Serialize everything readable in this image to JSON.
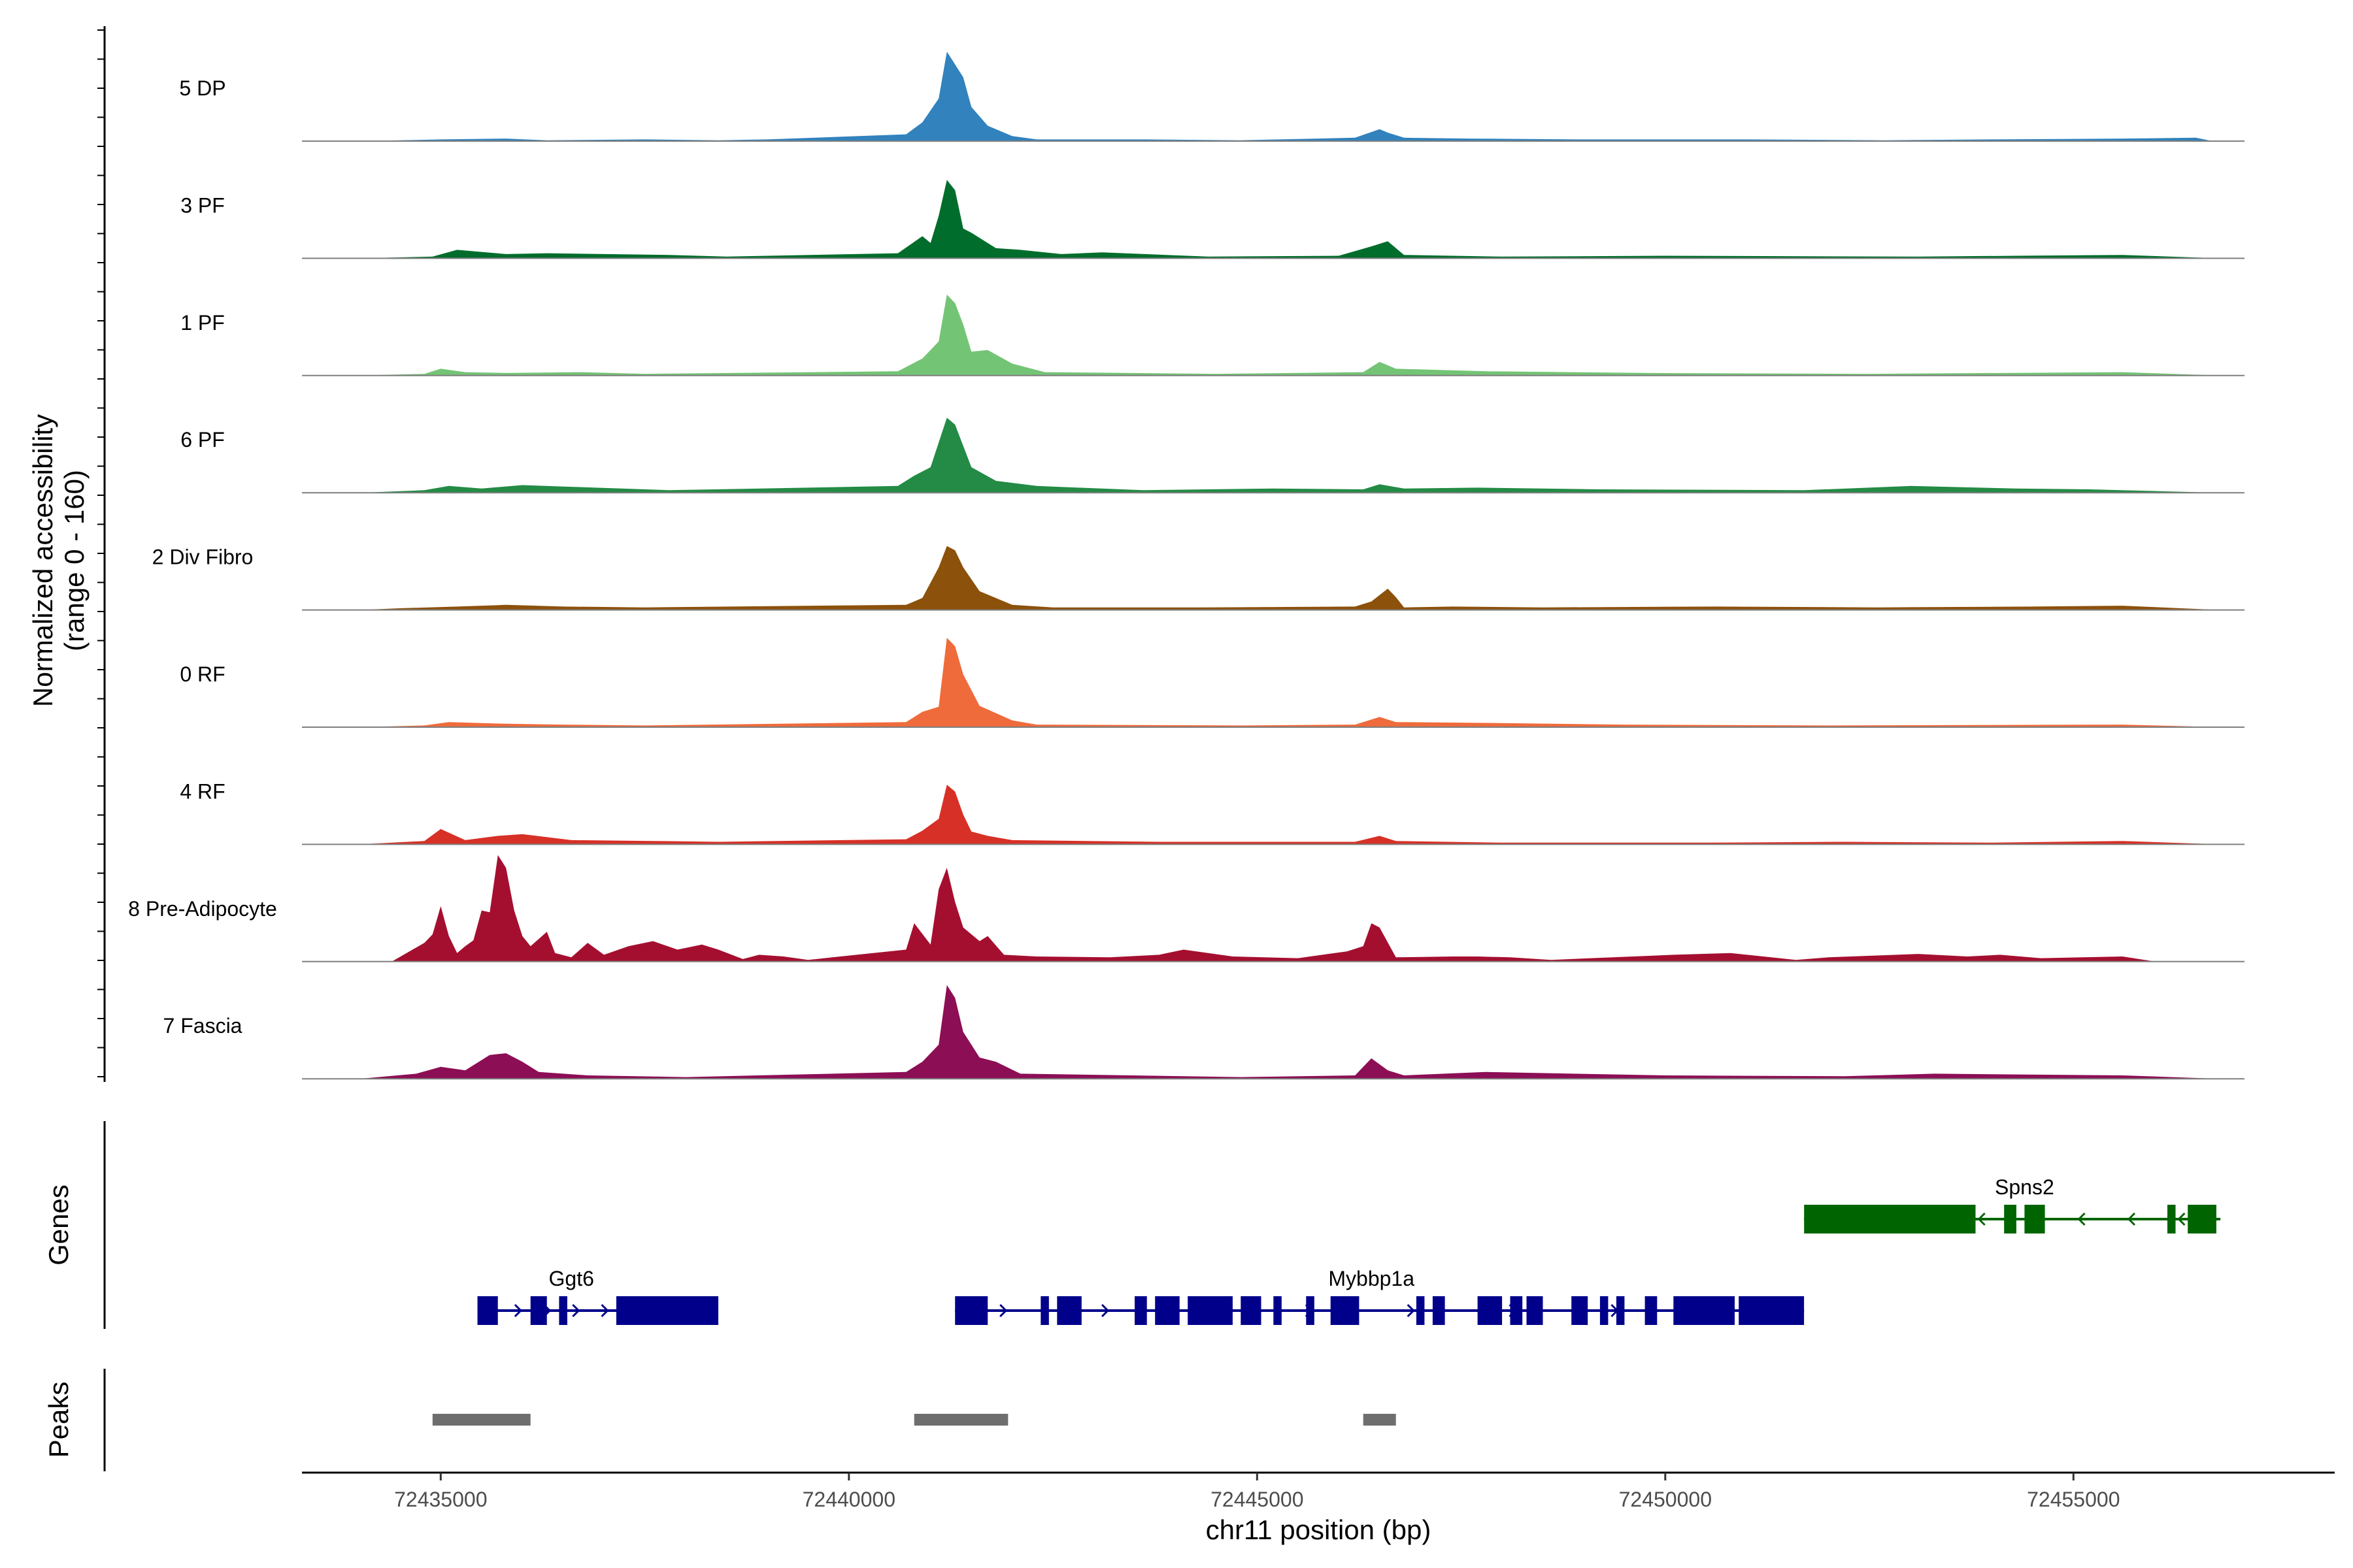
{
  "chart_data": {
    "type": "area",
    "title": "",
    "ylabel": "Normalized accessibility",
    "ylabel_range": "(range 0 - 160)",
    "ylim": [
      0,
      160
    ],
    "xlabel": "chr11 position (bp)",
    "xlim": [
      72433300,
      72458200
    ],
    "x_ticks": [
      72435000,
      72440000,
      72445000,
      72450000,
      72455000
    ],
    "x_tick_labels": [
      "72435000",
      "72440000",
      "72445000",
      "72450000",
      "72455000"
    ],
    "series": [
      {
        "name": "5 DP",
        "color": "#3182bd",
        "x": [
          72434000,
          72435000,
          72435800,
          72436300,
          72437500,
          72438400,
          72439000,
          72440700,
          72440900,
          72441100,
          72441200,
          72441300,
          72441400,
          72441500,
          72441700,
          72442000,
          72442300,
          72443600,
          72444800,
          72446200,
          72446500,
          72446600,
          72446800,
          72447600,
          72449000,
          72451000,
          72452700,
          72454000,
          72455600,
          72456500,
          72456700
        ],
        "values": [
          0,
          2,
          3,
          1,
          2,
          1,
          2,
          8,
          22,
          50,
          105,
          90,
          75,
          40,
          18,
          6,
          2,
          2,
          1,
          4,
          14,
          10,
          4,
          3,
          2,
          2,
          1,
          2,
          3,
          4,
          0
        ]
      },
      {
        "name": "3 PF",
        "color": "#006d2c",
        "x": [
          72434000,
          72434900,
          72435200,
          72435800,
          72436300,
          72437800,
          72438500,
          72440600,
          72440900,
          72441000,
          72441100,
          72441200,
          72441300,
          72441400,
          72441500,
          72441800,
          72442100,
          72442600,
          72443100,
          72444400,
          72446000,
          72446400,
          72446600,
          72446800,
          72448000,
          72450000,
          72453100,
          72454300,
          72455600,
          72456800
        ],
        "values": [
          0,
          2,
          10,
          5,
          6,
          4,
          2,
          6,
          26,
          18,
          50,
          92,
          80,
          35,
          30,
          12,
          10,
          5,
          7,
          2,
          3,
          14,
          20,
          4,
          2,
          3,
          2,
          3,
          4,
          0
        ]
      },
      {
        "name": "1 PF",
        "color": "#74c476",
        "x": [
          72434000,
          72434800,
          72435000,
          72435300,
          72435800,
          72436700,
          72437500,
          72440600,
          72440900,
          72441100,
          72441200,
          72441300,
          72441400,
          72441500,
          72441700,
          72442000,
          72442400,
          72444500,
          72446300,
          72446500,
          72446700,
          72447800,
          72449800,
          72452500,
          72455600,
          72456800
        ],
        "values": [
          0,
          2,
          8,
          4,
          3,
          4,
          2,
          5,
          20,
          40,
          95,
          85,
          60,
          28,
          30,
          14,
          4,
          2,
          4,
          16,
          8,
          5,
          3,
          2,
          4,
          0
        ]
      },
      {
        "name": "6 PF",
        "color": "#238b45",
        "x": [
          72434000,
          72434800,
          72435100,
          72435500,
          72436000,
          72436600,
          72437800,
          72440600,
          72440800,
          72441000,
          72441200,
          72441300,
          72441400,
          72441500,
          72441800,
          72442300,
          72443600,
          72445200,
          72446300,
          72446500,
          72446800,
          72447700,
          72449200,
          72451700,
          72453000,
          72454300,
          72455200,
          72456800
        ],
        "values": [
          0,
          3,
          8,
          5,
          9,
          7,
          3,
          8,
          20,
          30,
          88,
          80,
          55,
          30,
          14,
          8,
          3,
          5,
          4,
          10,
          5,
          6,
          4,
          3,
          8,
          5,
          4,
          0
        ]
      },
      {
        "name": "2 Div Fibro",
        "color": "#8c510a",
        "x": [
          72434000,
          72434500,
          72435200,
          72435800,
          72436500,
          72437500,
          72440700,
          72440900,
          72441100,
          72441200,
          72441300,
          72441400,
          72441600,
          72442000,
          72442500,
          72444300,
          72446200,
          72446400,
          72446600,
          72446700,
          72446800,
          72447400,
          72448500,
          72450600,
          72452600,
          72454500,
          72455600,
          72456800
        ],
        "values": [
          0,
          2,
          4,
          6,
          4,
          3,
          6,
          14,
          50,
          75,
          70,
          50,
          22,
          6,
          3,
          3,
          4,
          10,
          25,
          15,
          3,
          4,
          3,
          4,
          3,
          4,
          5,
          0
        ]
      },
      {
        "name": "0 RF",
        "color": "#ef6b3c",
        "x": [
          72434000,
          72434800,
          72435100,
          72435800,
          72436500,
          72437500,
          72440700,
          72440900,
          72441100,
          72441200,
          72441300,
          72441400,
          72441600,
          72442000,
          72442300,
          72444800,
          72446200,
          72446500,
          72446700,
          72447800,
          72449500,
          72452000,
          72455600,
          72456800
        ],
        "values": [
          0,
          2,
          6,
          4,
          3,
          2,
          6,
          18,
          24,
          105,
          95,
          62,
          25,
          8,
          3,
          2,
          3,
          12,
          6,
          5,
          3,
          2,
          3,
          0
        ]
      },
      {
        "name": "4 RF",
        "color": "#d73027",
        "x": [
          72434000,
          72434800,
          72435000,
          72435300,
          72435700,
          72436000,
          72436600,
          72437600,
          72438400,
          72440700,
          72440900,
          72441100,
          72441200,
          72441300,
          72441400,
          72441500,
          72441700,
          72442000,
          72443800,
          72446200,
          72446500,
          72446700,
          72448000,
          72450500,
          72452200,
          72454000,
          72455600,
          72456800
        ],
        "values": [
          0,
          4,
          18,
          5,
          10,
          12,
          5,
          4,
          3,
          6,
          16,
          30,
          70,
          62,
          35,
          15,
          10,
          5,
          3,
          3,
          10,
          4,
          2,
          2,
          3,
          2,
          4,
          0
        ]
      },
      {
        "name": "8 Pre-Adipocyte",
        "color": "#a50f2f",
        "x": [
          72434400,
          72434800,
          72434900,
          72435000,
          72435100,
          72435200,
          72435300,
          72435400,
          72435500,
          72435600,
          72435700,
          72435800,
          72435900,
          72436000,
          72436100,
          72436300,
          72436400,
          72436600,
          72436800,
          72437000,
          72437300,
          72437600,
          72437900,
          72438200,
          72438400,
          72438700,
          72438900,
          72439200,
          72439500,
          72440700,
          72440800,
          72441000,
          72441100,
          72441200,
          72441300,
          72441400,
          72441600,
          72441700,
          72441900,
          72442300,
          72443200,
          72443800,
          72444100,
          72444700,
          72445500,
          72446100,
          72446300,
          72446400,
          72446500,
          72446700,
          72447400,
          72447700,
          72448100,
          72448600,
          72450100,
          72450800,
          72451600,
          72452000,
          72453100,
          72453700,
          72454100,
          72454600,
          72455600,
          72456000
        ],
        "values": [
          0,
          22,
          32,
          65,
          30,
          10,
          18,
          25,
          60,
          58,
          125,
          110,
          60,
          30,
          18,
          35,
          10,
          5,
          22,
          8,
          18,
          24,
          14,
          20,
          14,
          3,
          8,
          6,
          2,
          14,
          45,
          20,
          85,
          110,
          70,
          40,
          24,
          30,
          8,
          6,
          5,
          8,
          14,
          6,
          4,
          12,
          18,
          45,
          40,
          5,
          6,
          6,
          5,
          2,
          8,
          10,
          2,
          5,
          9,
          6,
          8,
          4,
          6,
          0
        ]
      },
      {
        "name": "7 Fascia",
        "color": "#8c0e55",
        "x": [
          72434000,
          72434700,
          72435000,
          72435300,
          72435600,
          72435800,
          72436000,
          72436200,
          72436800,
          72438000,
          72440700,
          72440900,
          72441100,
          72441200,
          72441300,
          72441400,
          72441600,
          72441800,
          72442100,
          72444800,
          72446200,
          72446400,
          72446600,
          72446800,
          72447800,
          72450000,
          72452200,
          72453300,
          72455600,
          72456800
        ],
        "values": [
          0,
          6,
          14,
          10,
          28,
          30,
          20,
          8,
          4,
          2,
          8,
          20,
          40,
          110,
          95,
          55,
          25,
          20,
          6,
          2,
          4,
          24,
          10,
          4,
          8,
          4,
          3,
          6,
          4,
          0
        ]
      }
    ],
    "genes": [
      {
        "name": "Ggt6",
        "strand": "+",
        "color": "#00008b",
        "start": 72435450,
        "end": 72438400,
        "exons": [
          [
            72435450,
            72435700
          ],
          [
            72436100,
            72436300
          ],
          [
            72436450,
            72436550
          ],
          [
            72437150,
            72438400
          ]
        ]
      },
      {
        "name": "Mybbp1a",
        "strand": "+",
        "color": "#00008b",
        "start": 72441300,
        "end": 72451700,
        "exons": [
          [
            72441300,
            72441700
          ],
          [
            72442350,
            72442450
          ],
          [
            72442550,
            72442850
          ],
          [
            72443500,
            72443650
          ],
          [
            72443750,
            72444050
          ],
          [
            72444150,
            72444700
          ],
          [
            72444800,
            72445050
          ],
          [
            72445200,
            72445300
          ],
          [
            72445600,
            72445700
          ],
          [
            72445900,
            72446250
          ],
          [
            72446950,
            72447050
          ],
          [
            72447150,
            72447300
          ],
          [
            72447700,
            72448000
          ],
          [
            72448100,
            72448250
          ],
          [
            72448300,
            72448500
          ],
          [
            72448850,
            72449050
          ],
          [
            72449200,
            72449300
          ],
          [
            72449400,
            72449500
          ],
          [
            72449750,
            72449900
          ],
          [
            72450100,
            72450850
          ],
          [
            72450900,
            72451700
          ]
        ]
      },
      {
        "name": "Spns2",
        "strand": "-",
        "color": "#006400",
        "start": 72451700,
        "end": 72456800,
        "exons": [
          [
            72451700,
            72453800
          ],
          [
            72454150,
            72454300
          ],
          [
            72454400,
            72454650
          ],
          [
            72456150,
            72456250
          ],
          [
            72456400,
            72456750
          ]
        ]
      }
    ],
    "gene_track_label": "Genes",
    "peaks": [
      [
        72434900,
        72436100
      ],
      [
        72440800,
        72441950
      ],
      [
        72446300,
        72446700
      ]
    ],
    "peak_color": "#6e6e6e",
    "peak_track_label": "Peaks"
  }
}
